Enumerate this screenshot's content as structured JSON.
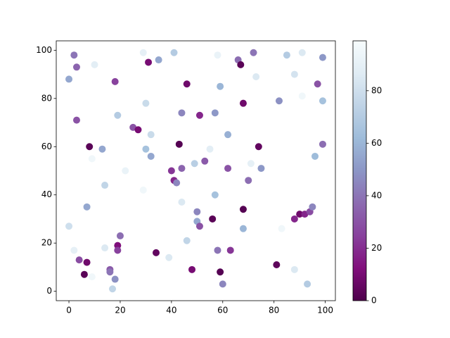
{
  "chart_data": {
    "type": "scatter",
    "x": [
      2,
      3,
      0,
      10,
      18,
      3,
      29,
      31,
      35,
      41,
      46,
      58,
      66,
      67,
      72,
      85,
      91,
      99,
      73,
      88,
      59,
      97,
      91,
      82,
      99,
      68,
      30,
      19,
      44,
      51,
      57,
      25,
      27,
      32,
      62,
      8,
      13,
      30,
      43,
      55,
      74,
      99,
      9,
      32,
      22,
      40,
      44,
      49,
      53,
      62,
      71,
      75,
      96,
      41,
      42,
      14,
      29,
      70,
      44,
      57,
      7,
      0,
      50,
      50,
      51,
      56,
      68,
      68,
      83,
      90,
      92,
      88,
      94,
      95,
      20,
      19,
      19,
      46,
      2,
      14,
      58,
      63,
      4,
      7,
      34,
      39,
      6,
      9,
      16,
      16,
      18,
      17,
      48,
      59,
      60,
      81,
      88,
      93
    ],
    "y": [
      98,
      93,
      88,
      94,
      87,
      71,
      99,
      95,
      96,
      99,
      86,
      98,
      96,
      94,
      99,
      98,
      99,
      97,
      89,
      90,
      85,
      86,
      81,
      79,
      79,
      78,
      78,
      73,
      74,
      73,
      74,
      68,
      67,
      65,
      65,
      60,
      59,
      59,
      61,
      59,
      60,
      61,
      55,
      56,
      50,
      50,
      51,
      53,
      54,
      51,
      53,
      51,
      56,
      46,
      45,
      44,
      42,
      46,
      37,
      40,
      35,
      27,
      33,
      29,
      27,
      30,
      34,
      26,
      26,
      32,
      32,
      30,
      33,
      35,
      23,
      19,
      17,
      21,
      17,
      18,
      17,
      17,
      13,
      12,
      16,
      14,
      7,
      6,
      9,
      8,
      5,
      1,
      9,
      8,
      3,
      11,
      9,
      3
    ],
    "c": [
      40,
      35,
      55,
      88,
      25,
      30,
      90,
      10,
      55,
      70,
      8,
      92,
      38,
      3,
      40,
      70,
      85,
      50,
      85,
      82,
      60,
      30,
      95,
      48,
      65,
      8,
      78,
      70,
      45,
      18,
      50,
      30,
      10,
      78,
      58,
      3,
      55,
      65,
      2,
      88,
      5,
      38,
      95,
      55,
      92,
      22,
      35,
      72,
      32,
      30,
      90,
      50,
      62,
      18,
      45,
      75,
      95,
      38,
      85,
      65,
      55,
      80,
      45,
      55,
      30,
      3,
      2,
      60,
      95,
      8,
      18,
      18,
      28,
      45,
      38,
      12,
      25,
      75,
      90,
      85,
      40,
      22,
      28,
      8,
      5,
      85,
      3,
      95,
      32,
      40,
      48,
      75,
      10,
      2,
      45,
      4,
      85,
      70
    ],
    "cmap": [
      "#4d004b",
      "#810f7c",
      "#88419d",
      "#8c6bb1",
      "#8c96c6",
      "#9ebcda",
      "#bfd3e6",
      "#e0ecf4",
      "#f7fcfd"
    ],
    "clim": [
      0,
      99
    ],
    "xlim": [
      -4.95,
      103.95
    ],
    "ylim": [
      -3.9,
      103.9
    ],
    "xticks": [
      0,
      20,
      40,
      60,
      80,
      100
    ],
    "yticks": [
      0,
      20,
      40,
      60,
      80,
      100
    ],
    "cticks": [
      0,
      20,
      40,
      60,
      80
    ]
  }
}
